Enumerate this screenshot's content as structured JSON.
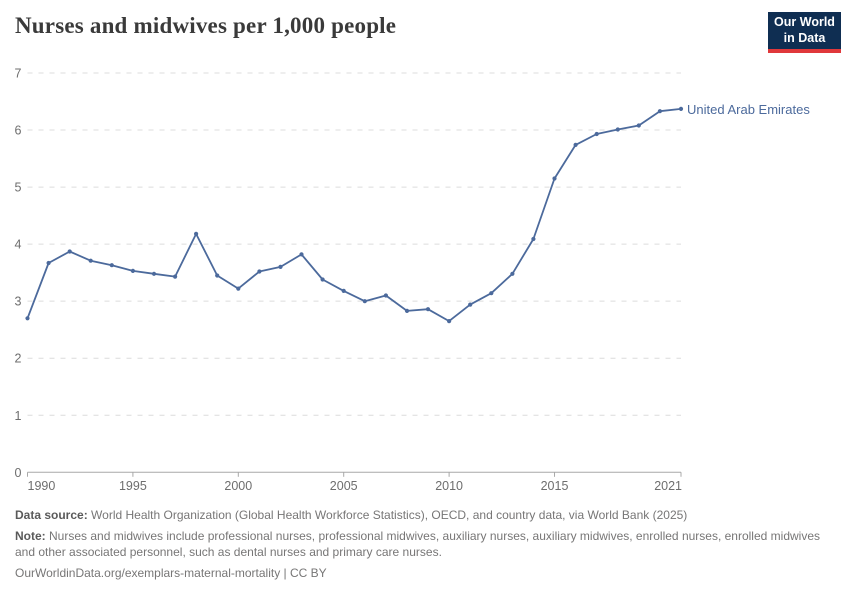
{
  "header": {
    "title": "Nurses and midwives per 1,000 people",
    "logo": {
      "line1": "Our World",
      "line2": "in Data"
    }
  },
  "chart_data": {
    "type": "line",
    "title": "Nurses and midwives per 1,000 people",
    "xlabel": "",
    "ylabel": "",
    "x": [
      1990,
      1991,
      1992,
      1993,
      1994,
      1995,
      1996,
      1997,
      1998,
      1999,
      2000,
      2001,
      2002,
      2003,
      2004,
      2005,
      2006,
      2007,
      2008,
      2009,
      2010,
      2011,
      2012,
      2013,
      2014,
      2015,
      2016,
      2017,
      2018,
      2019,
      2020,
      2021
    ],
    "series": [
      {
        "name": "United Arab Emirates",
        "color": "#4c6a9c",
        "values": [
          2.7,
          3.67,
          3.87,
          3.71,
          3.63,
          3.53,
          3.48,
          3.43,
          4.18,
          3.45,
          3.22,
          3.52,
          3.6,
          3.82,
          3.38,
          3.18,
          3.0,
          3.1,
          2.83,
          2.86,
          2.65,
          2.94,
          3.14,
          3.48,
          4.09,
          5.15,
          5.74,
          5.93,
          6.01,
          6.08,
          6.33,
          6.37
        ]
      }
    ],
    "xlim": [
      1990,
      2021
    ],
    "ylim": [
      0,
      7
    ],
    "y_ticks": [
      0,
      1,
      2,
      3,
      4,
      5,
      6,
      7
    ],
    "x_ticks": [
      1990,
      1995,
      2000,
      2005,
      2010,
      2015,
      2021
    ],
    "grid": "horizontal-dashed",
    "legend_position": "right-of-line-end"
  },
  "footer": {
    "data_source_label": "Data source:",
    "data_source_text": " World Health Organization (Global Health Workforce Statistics), OECD, and country data, via World Bank (2025)",
    "note_label": "Note:",
    "note_text": " Nurses and midwives include professional nurses, professional midwives, auxiliary nurses, auxiliary midwives, enrolled nurses, enrolled midwives and other associated personnel, such as dental nurses and primary care nurses.",
    "link_text": "OurWorldinData.org/exemplars-maternal-mortality | CC BY"
  },
  "colors": {
    "series": "#4c6a9c",
    "gridline": "#dcdcdc",
    "axis": "#a8a8a8",
    "tick_label": "#6e6e6e",
    "title": "#3a3a3a",
    "logo_bg": "#0f2e52",
    "logo_stripe": "#e0383b"
  }
}
